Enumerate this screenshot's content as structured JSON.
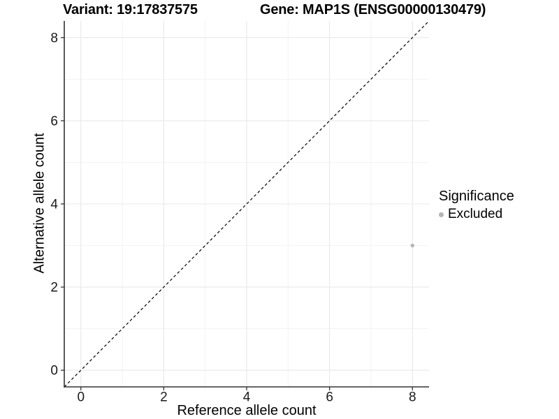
{
  "chart_data": {
    "type": "scatter",
    "titles": [
      "Variant: 19:17837575",
      "Gene: MAP1S (ENSG00000130479)"
    ],
    "xlabel": "Reference allele count",
    "ylabel": "Alternative allele count",
    "xlim": [
      -0.4,
      8.4
    ],
    "ylim": [
      -0.4,
      8.4
    ],
    "x_major_ticks": [
      0,
      2,
      4,
      6,
      8
    ],
    "y_major_ticks": [
      0,
      2,
      4,
      6,
      8
    ],
    "x_minor_ticks": [
      1,
      3,
      5,
      7
    ],
    "y_minor_ticks": [
      1,
      3,
      5,
      7
    ],
    "grid": "major and minor gridlines on white background, axis lines left and bottom only",
    "identity_line": {
      "slope": 1,
      "intercept": 0,
      "style": "dashed",
      "color": "#000000"
    },
    "series": [
      {
        "name": "Excluded",
        "color": "#b5b5b5",
        "points": [
          {
            "x": 8,
            "y": 3
          }
        ]
      }
    ],
    "legend": {
      "title": "Significance",
      "position": "right",
      "items": [
        {
          "label": "Excluded",
          "color": "#b5b5b5",
          "marker": "circle"
        }
      ]
    }
  },
  "colors": {
    "background": "#ffffff",
    "grid_major": "#e8e8e8",
    "grid_minor": "#f3f3f3",
    "axis_line": "#333333",
    "tick_mark": "#333333",
    "tick_label": "#1a1a1a",
    "identity_line": "#000000"
  }
}
